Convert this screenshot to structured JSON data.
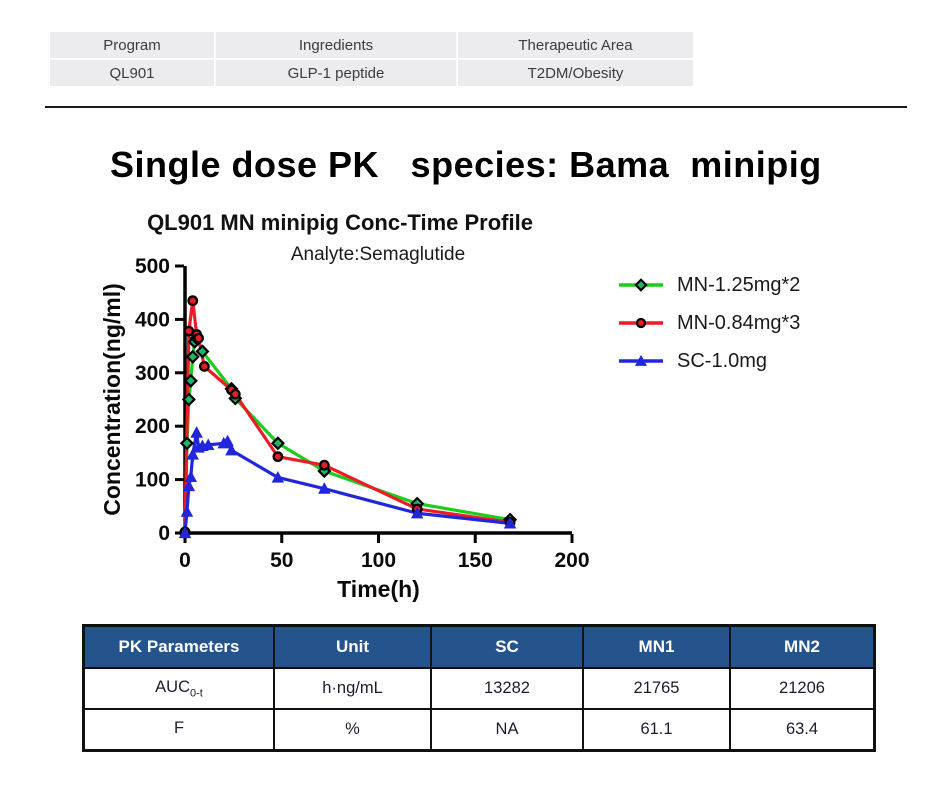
{
  "header_table": {
    "columns": [
      "Program",
      "Ingredients",
      "Therapeutic Area"
    ],
    "row": [
      "QL901",
      "GLP-1 peptide",
      "T2DM/Obesity"
    ],
    "cell_bg": "#ececee"
  },
  "page_title": "Single dose PK   species: Bama  minipig",
  "chart_data": {
    "type": "line",
    "title": "QL901 MN minipig Conc-Time Profile",
    "annotation": "Analyte:Semaglutide",
    "xlabel": "Time(h)",
    "ylabel": "Concentration(ng/ml)",
    "xlim": [
      0,
      200
    ],
    "ylim": [
      0,
      500
    ],
    "xticks": [
      0,
      50,
      100,
      150,
      200
    ],
    "yticks": [
      0,
      100,
      200,
      300,
      400,
      500
    ],
    "grid": false,
    "legend_position": "right",
    "series": [
      {
        "name": "MN-1.25mg*2",
        "color": "#1ecc1e",
        "marker": "diamond",
        "marker_fill": "#1db56a",
        "marker_stroke": "#000000",
        "x": [
          0,
          1,
          2,
          3,
          4,
          5,
          6,
          9,
          24,
          26,
          48,
          72,
          120,
          168
        ],
        "y": [
          0,
          168,
          250,
          285,
          330,
          358,
          365,
          340,
          270,
          252,
          168,
          116,
          55,
          25
        ]
      },
      {
        "name": "MN-0.84mg*3",
        "color": "#ed1c24",
        "marker": "circle",
        "marker_fill": "#ed1c24",
        "marker_stroke": "#000000",
        "x": [
          0,
          2,
          4,
          6,
          7,
          10,
          24,
          26,
          48,
          72,
          120,
          168
        ],
        "y": [
          2,
          378,
          435,
          372,
          365,
          312,
          268,
          260,
          143,
          127,
          45,
          20
        ]
      },
      {
        "name": "SC-1.0mg",
        "color": "#2126dd",
        "marker": "triangle",
        "marker_fill": "#2126dd",
        "marker_stroke": "#2126dd",
        "x": [
          0,
          1,
          2,
          3,
          4,
          6,
          7,
          9,
          12,
          20,
          22,
          24,
          48,
          72,
          120,
          168
        ],
        "y": [
          0,
          40,
          88,
          105,
          147,
          188,
          160,
          163,
          165,
          168,
          172,
          155,
          104,
          83,
          37,
          18
        ]
      }
    ]
  },
  "pk_table": {
    "header": [
      "PK Parameters",
      "Unit",
      "SC",
      "MN1",
      "MN2"
    ],
    "header_bg": "#25538b",
    "rows": [
      {
        "param": "AUC",
        "param_sub": "0-t",
        "unit": "h·ng/mL",
        "sc": "13282",
        "mn1": "21765",
        "mn2": "21206"
      },
      {
        "param": "F",
        "param_sub": "",
        "unit": "%",
        "sc": "NA",
        "mn1": "61.1",
        "mn2": "63.4"
      }
    ]
  }
}
